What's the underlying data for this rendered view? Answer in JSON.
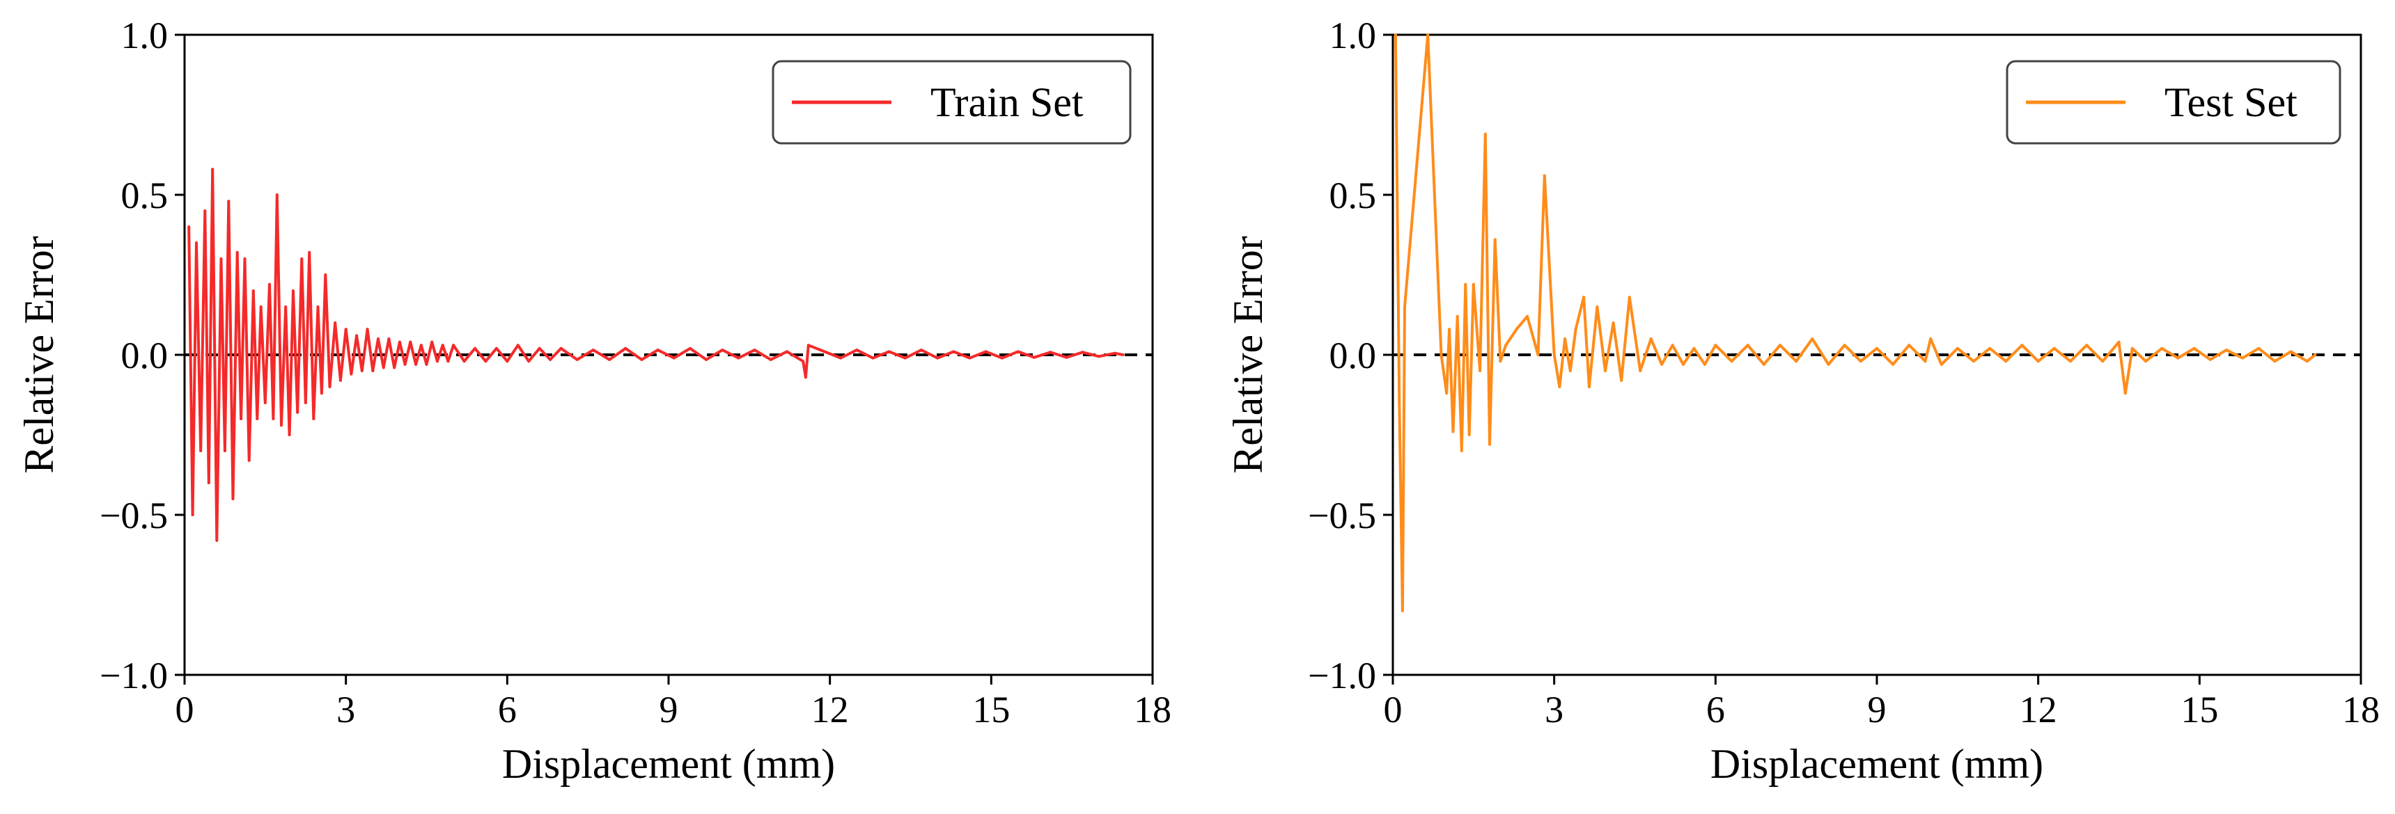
{
  "chart_data": [
    {
      "type": "line",
      "panel": "left",
      "xlabel": "Displacement (mm)",
      "ylabel": "Relative Error",
      "xlim": [
        0,
        18
      ],
      "ylim": [
        -1.0,
        1.0
      ],
      "xticks": [
        0,
        3,
        6,
        9,
        12,
        15,
        18
      ],
      "xtick_labels": [
        "0",
        "3",
        "6",
        "9",
        "12",
        "15",
        "18"
      ],
      "yticks": [
        -1.0,
        -0.5,
        0.0,
        0.5,
        1.0
      ],
      "ytick_labels": [
        "−1.0",
        "−0.5",
        "0.0",
        "0.5",
        "1.0"
      ],
      "legend_position": "top-right",
      "reference_line": {
        "y": 0.0,
        "style": "dashed",
        "color": "#000000"
      },
      "series": [
        {
          "name": "Train Set",
          "color": "#f42a2a",
          "x": [
            0.08,
            0.15,
            0.22,
            0.3,
            0.38,
            0.45,
            0.52,
            0.6,
            0.68,
            0.75,
            0.82,
            0.9,
            0.98,
            1.05,
            1.12,
            1.2,
            1.28,
            1.35,
            1.42,
            1.5,
            1.58,
            1.65,
            1.72,
            1.8,
            1.88,
            1.95,
            2.02,
            2.1,
            2.18,
            2.25,
            2.32,
            2.4,
            2.48,
            2.55,
            2.62,
            2.7,
            2.8,
            2.9,
            3.0,
            3.1,
            3.2,
            3.3,
            3.4,
            3.5,
            3.6,
            3.7,
            3.8,
            3.9,
            4.0,
            4.1,
            4.2,
            4.3,
            4.4,
            4.5,
            4.6,
            4.7,
            4.8,
            4.9,
            5.0,
            5.2,
            5.4,
            5.6,
            5.8,
            6.0,
            6.2,
            6.4,
            6.6,
            6.8,
            7.0,
            7.3,
            7.6,
            7.9,
            8.2,
            8.5,
            8.8,
            9.1,
            9.4,
            9.7,
            10.0,
            10.3,
            10.6,
            10.9,
            11.2,
            11.5,
            11.55,
            11.6,
            11.9,
            12.2,
            12.5,
            12.8,
            13.1,
            13.4,
            13.7,
            14.0,
            14.3,
            14.6,
            14.9,
            15.2,
            15.5,
            15.8,
            16.1,
            16.4,
            16.7,
            17.0,
            17.3,
            17.45
          ],
          "y": [
            0.4,
            -0.5,
            0.35,
            -0.3,
            0.45,
            -0.4,
            0.58,
            -0.58,
            0.3,
            -0.3,
            0.48,
            -0.45,
            0.32,
            -0.2,
            0.3,
            -0.33,
            0.2,
            -0.2,
            0.15,
            -0.15,
            0.22,
            -0.2,
            0.5,
            -0.22,
            0.15,
            -0.25,
            0.2,
            -0.18,
            0.3,
            -0.15,
            0.32,
            -0.2,
            0.15,
            -0.12,
            0.25,
            -0.1,
            0.1,
            -0.08,
            0.08,
            -0.06,
            0.06,
            -0.05,
            0.08,
            -0.05,
            0.05,
            -0.04,
            0.05,
            -0.04,
            0.04,
            -0.03,
            0.04,
            -0.03,
            0.03,
            -0.03,
            0.04,
            -0.02,
            0.03,
            -0.02,
            0.03,
            -0.02,
            0.02,
            -0.02,
            0.02,
            -0.02,
            0.03,
            -0.02,
            0.02,
            -0.015,
            0.02,
            -0.015,
            0.015,
            -0.015,
            0.02,
            -0.015,
            0.015,
            -0.01,
            0.02,
            -0.015,
            0.015,
            -0.01,
            0.015,
            -0.015,
            0.01,
            -0.02,
            -0.07,
            0.03,
            0.01,
            -0.01,
            0.015,
            -0.01,
            0.01,
            -0.01,
            0.015,
            -0.01,
            0.01,
            -0.01,
            0.01,
            -0.01,
            0.01,
            -0.008,
            0.008,
            -0.008,
            0.008,
            -0.005,
            0.005,
            0.0
          ]
        }
      ]
    },
    {
      "type": "line",
      "panel": "right",
      "xlabel": "Displacement (mm)",
      "ylabel": "Relative Error",
      "xlim": [
        0,
        18
      ],
      "ylim": [
        -1.0,
        1.0
      ],
      "xticks": [
        0,
        3,
        6,
        9,
        12,
        15,
        18
      ],
      "xtick_labels": [
        "0",
        "3",
        "6",
        "9",
        "12",
        "15",
        "18"
      ],
      "yticks": [
        -1.0,
        -0.5,
        0.0,
        0.5,
        1.0
      ],
      "ytick_labels": [
        "−1.0",
        "−0.5",
        "0.0",
        "0.5",
        "1.0"
      ],
      "legend_position": "top-right",
      "reference_line": {
        "y": 0.0,
        "style": "dashed",
        "color": "#000000"
      },
      "series": [
        {
          "name": "Test Set",
          "color": "#ff8c1a",
          "x": [
            0.05,
            0.12,
            0.18,
            0.22,
            0.65,
            0.9,
            1.0,
            1.05,
            1.12,
            1.2,
            1.28,
            1.35,
            1.42,
            1.5,
            1.62,
            1.72,
            1.8,
            1.9,
            2.0,
            2.1,
            2.3,
            2.5,
            2.7,
            2.82,
            3.0,
            3.1,
            3.2,
            3.3,
            3.4,
            3.55,
            3.65,
            3.8,
            3.95,
            4.1,
            4.25,
            4.4,
            4.6,
            4.8,
            5.0,
            5.2,
            5.4,
            5.6,
            5.8,
            6.0,
            6.3,
            6.6,
            6.9,
            7.2,
            7.5,
            7.8,
            8.1,
            8.4,
            8.7,
            9.0,
            9.3,
            9.6,
            9.9,
            10.0,
            10.2,
            10.5,
            10.8,
            11.1,
            11.4,
            11.7,
            12.0,
            12.3,
            12.6,
            12.9,
            13.2,
            13.5,
            13.62,
            13.75,
            14.0,
            14.3,
            14.6,
            14.9,
            15.2,
            15.5,
            15.8,
            16.1,
            16.4,
            16.7,
            17.0,
            17.15
          ],
          "y": [
            1.0,
            -0.15,
            -0.8,
            0.15,
            1.0,
            0.0,
            -0.12,
            0.08,
            -0.24,
            0.12,
            -0.3,
            0.22,
            -0.25,
            0.22,
            -0.05,
            0.69,
            -0.28,
            0.36,
            -0.02,
            0.03,
            0.08,
            0.12,
            0.0,
            0.56,
            0.0,
            -0.1,
            0.05,
            -0.05,
            0.08,
            0.18,
            -0.1,
            0.15,
            -0.05,
            0.1,
            -0.08,
            0.18,
            -0.05,
            0.05,
            -0.03,
            0.03,
            -0.03,
            0.02,
            -0.03,
            0.03,
            -0.02,
            0.03,
            -0.03,
            0.03,
            -0.02,
            0.05,
            -0.03,
            0.03,
            -0.02,
            0.02,
            -0.03,
            0.03,
            -0.02,
            0.05,
            -0.03,
            0.02,
            -0.02,
            0.02,
            -0.02,
            0.03,
            -0.02,
            0.02,
            -0.02,
            0.03,
            -0.02,
            0.04,
            -0.12,
            0.02,
            -0.02,
            0.02,
            -0.01,
            0.02,
            -0.015,
            0.015,
            -0.01,
            0.02,
            -0.02,
            0.01,
            -0.02,
            0.0
          ]
        }
      ]
    }
  ]
}
